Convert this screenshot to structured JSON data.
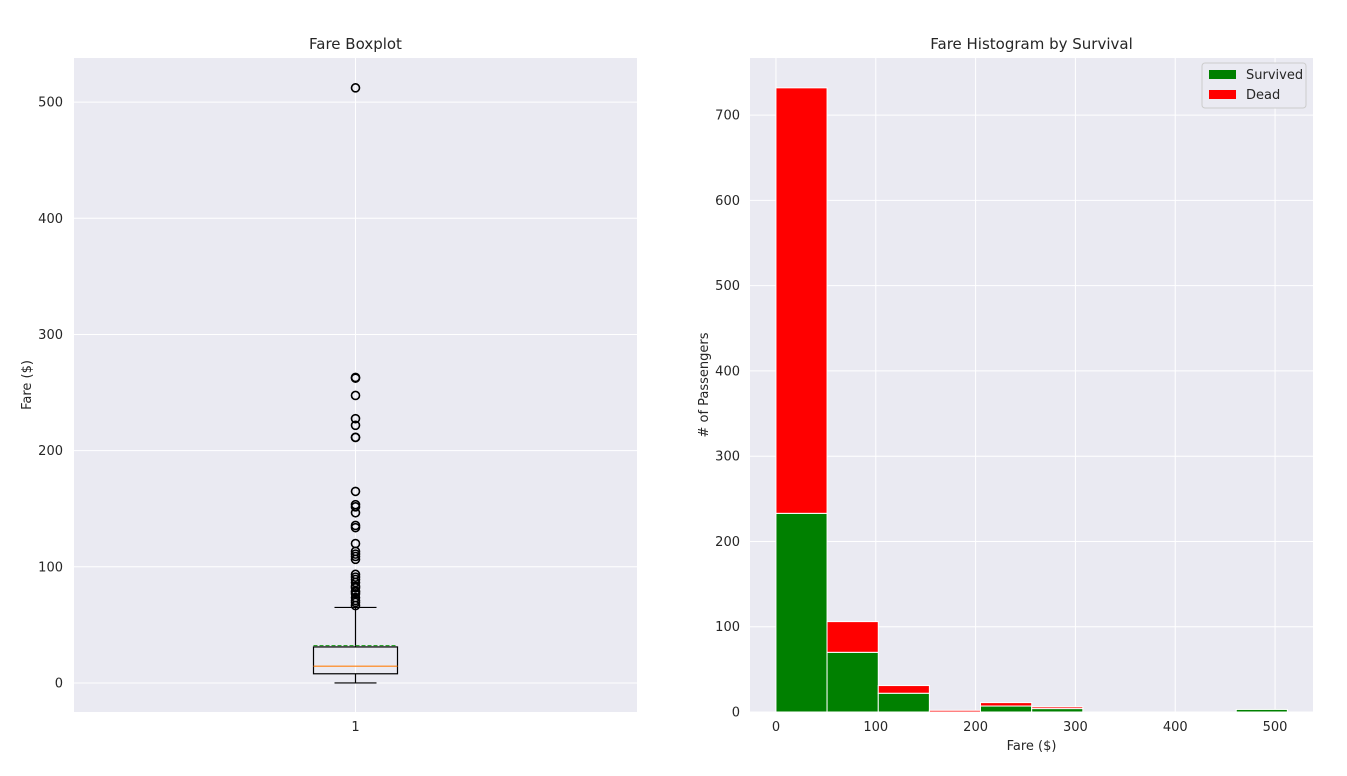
{
  "colors": {
    "axes_bg": "#EAEAF2",
    "grid": "#FFFFFF",
    "survived": "#008000",
    "dead": "#FF0000",
    "median": "#FF7F0E",
    "mean": "#2CA02C",
    "box": "#000000"
  },
  "chart_data": [
    {
      "type": "boxplot",
      "title": "Fare Boxplot",
      "xlabel": "",
      "ylabel": "Fare ($)",
      "categories": [
        "1"
      ],
      "ylim": [
        -25,
        538
      ],
      "yticks": [
        0,
        100,
        200,
        300,
        400,
        500
      ],
      "grid": true,
      "box": {
        "whisker_low": 0,
        "q1": 7.91,
        "median": 14.45,
        "q3": 31.0,
        "whisker_high": 65.0,
        "mean": 32.2
      },
      "outliers": [
        66.6,
        69.3,
        71.0,
        73.5,
        76.7,
        78.3,
        79.2,
        81.9,
        83.2,
        86.5,
        89.1,
        91.1,
        93.5,
        106.4,
        108.9,
        110.9,
        113.3,
        120.0,
        133.7,
        135.6,
        146.5,
        151.6,
        153.5,
        164.9,
        211.3,
        211.5,
        221.8,
        227.5,
        247.5,
        262.4,
        263.0,
        512.3
      ]
    },
    {
      "type": "bar",
      "stacked": true,
      "title": "Fare Histogram by Survival",
      "xlabel": "Fare ($)",
      "ylabel": "# of Passengers",
      "xlim": [
        -26,
        538
      ],
      "ylim": [
        0,
        767
      ],
      "xticks": [
        0,
        100,
        200,
        300,
        400,
        500
      ],
      "yticks": [
        0,
        100,
        200,
        300,
        400,
        500,
        600,
        700
      ],
      "grid": true,
      "legend_position": "top-right",
      "bin_edges": [
        0,
        51.2,
        102.5,
        153.7,
        204.9,
        256.2,
        307.4,
        358.6,
        409.9,
        461.1,
        512.3
      ],
      "series": [
        {
          "name": "Survived",
          "values": [
            233,
            70,
            22,
            0,
            7,
            4,
            0,
            0,
            0,
            3
          ]
        },
        {
          "name": "Dead",
          "values": [
            499,
            36,
            9,
            2,
            4,
            2,
            0,
            0,
            0,
            0
          ]
        }
      ]
    }
  ]
}
